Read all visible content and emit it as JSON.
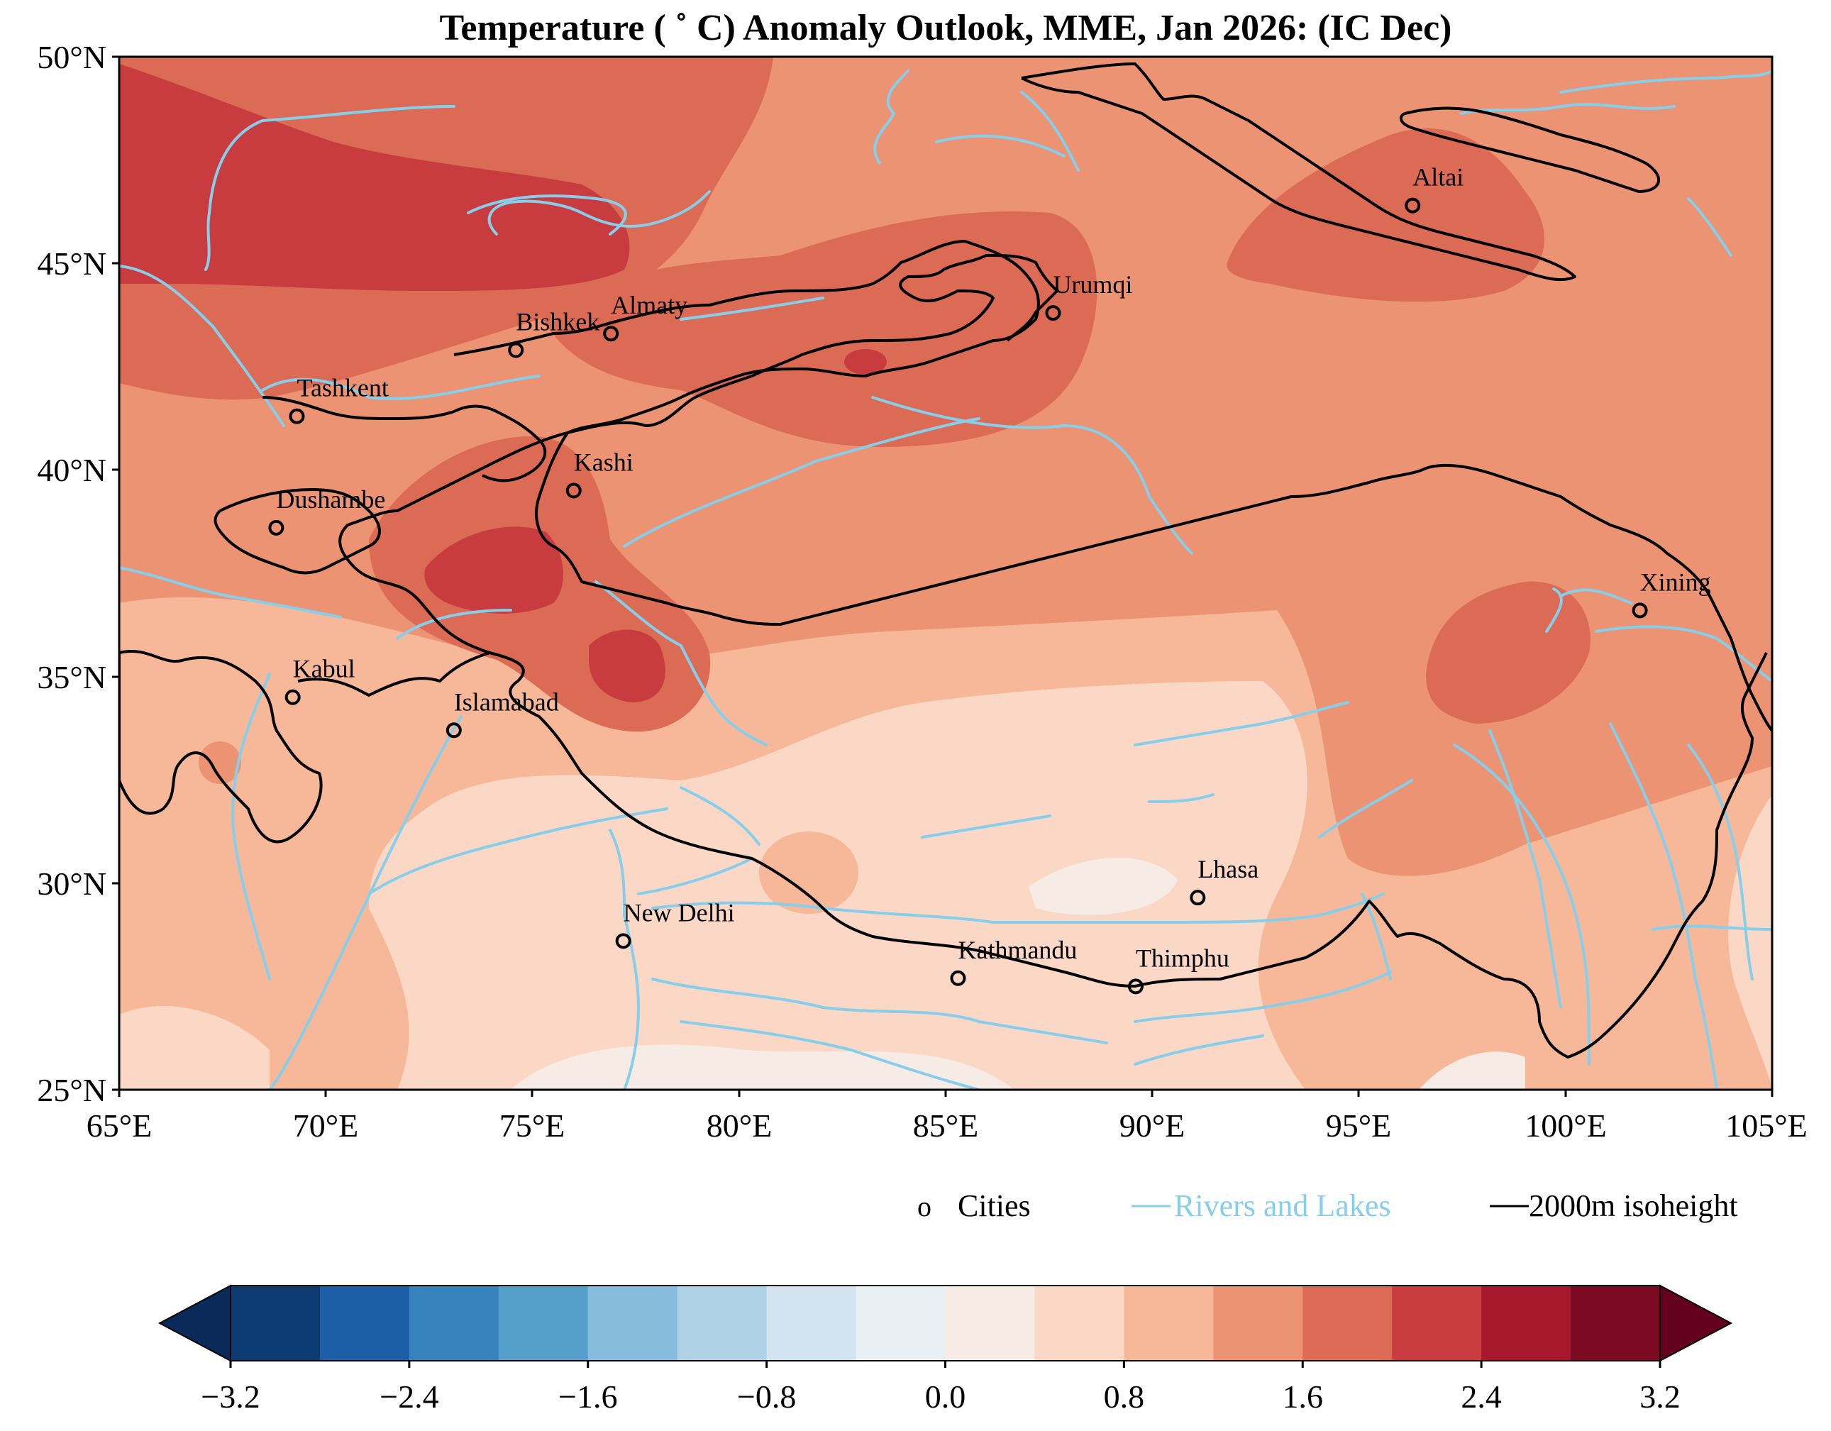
{
  "title": "Temperature ( ˚ C) Anomaly Outlook, MME, Jan  2026:  (IC Dec)",
  "map": {
    "lon_range": [
      65,
      105
    ],
    "lat_range": [
      25,
      50
    ],
    "lat_ticks": [
      "50°N",
      "45°N",
      "40°N",
      "35°N",
      "30°N",
      "25°N"
    ],
    "lon_ticks": [
      "65°E",
      "70°E",
      "75°E",
      "80°E",
      "85°E",
      "90°E",
      "95°E",
      "100°E",
      "105°E"
    ],
    "cities": [
      {
        "name": "Altai",
        "lon": 96.3,
        "lat": 46.4
      },
      {
        "name": "Urumqi",
        "lon": 87.6,
        "lat": 43.8
      },
      {
        "name": "Almaty",
        "lon": 76.9,
        "lat": 43.3
      },
      {
        "name": "Bishkek",
        "lon": 74.6,
        "lat": 42.9
      },
      {
        "name": "Tashkent",
        "lon": 69.3,
        "lat": 41.3
      },
      {
        "name": "Kashi",
        "lon": 76.0,
        "lat": 39.5
      },
      {
        "name": "Dushambe",
        "lon": 68.8,
        "lat": 38.6
      },
      {
        "name": "Xining",
        "lon": 101.8,
        "lat": 36.6
      },
      {
        "name": "Kabul",
        "lon": 69.2,
        "lat": 34.5
      },
      {
        "name": "Islamabad",
        "lon": 73.1,
        "lat": 33.7
      },
      {
        "name": "Lhasa",
        "lon": 91.1,
        "lat": 29.65
      },
      {
        "name": "New Delhi",
        "lon": 77.2,
        "lat": 28.6
      },
      {
        "name": "Kathmandu",
        "lon": 85.3,
        "lat": 27.7
      },
      {
        "name": "Thimphu",
        "lon": 89.6,
        "lat": 27.5
      }
    ]
  },
  "legend": {
    "cities_marker": "o",
    "cities_label": "Cities",
    "rivers_label": "Rivers and Lakes",
    "isoheight_label": "2000m isoheight",
    "river_color": "#87ceeb",
    "isoheight_color": "#000000"
  },
  "colorbar": {
    "tick_labels": [
      "−3.2",
      "−2.4",
      "−1.6",
      "−0.8",
      "0.0",
      "0.8",
      "1.6",
      "2.4",
      "3.2"
    ],
    "bounds": [
      -3.2,
      -2.8,
      -2.4,
      -2.0,
      -1.6,
      -1.2,
      -0.8,
      -0.4,
      0.0,
      0.4,
      0.8,
      1.2,
      1.6,
      2.0,
      2.4,
      2.8,
      3.2
    ],
    "colors": [
      "#0d3b72",
      "#1c5fa7",
      "#3582bd",
      "#569fcb",
      "#88bcdc",
      "#aed1e6",
      "#d3e4f0",
      "#e9f0f4",
      "#f7ebe6",
      "#fbd8c6",
      "#f7b799",
      "#ec9374",
      "#dc6b55",
      "#c83b3f",
      "#a8182c",
      "#7c0a22"
    ],
    "under_color": "#0a2a5a",
    "over_color": "#640020"
  }
}
